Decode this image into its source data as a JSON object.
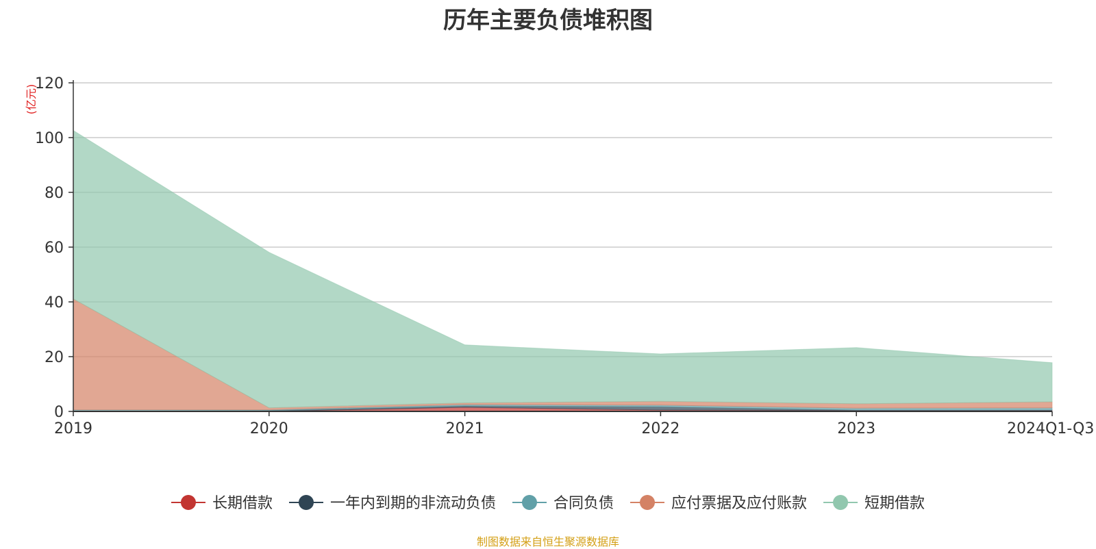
{
  "title": "历年主要负债堆积图",
  "source_note": "制图数据来自恒生聚源数据库",
  "chart_data": {
    "type": "area",
    "stacked": true,
    "title": "历年主要负债堆积图",
    "ylabel": "(亿元)",
    "xlabel": "",
    "x": [
      "2019",
      "2020",
      "2021",
      "2022",
      "2023",
      "2024Q1-Q3"
    ],
    "ylim": [
      0,
      120
    ],
    "yticks": [
      0,
      20,
      40,
      60,
      80,
      100,
      120
    ],
    "grid": true,
    "legend_position": "bottom",
    "series": [
      {
        "name": "长期借款",
        "color": "#c23531",
        "values": [
          0,
          0,
          1.5,
          0.5,
          0.3,
          0.3
        ]
      },
      {
        "name": "一年内到期的非流动负债",
        "color": "#2f4554",
        "values": [
          0,
          0.3,
          0.5,
          1.2,
          0.2,
          0.2
        ]
      },
      {
        "name": "合同负债",
        "color": "#61a0a8",
        "values": [
          0.6,
          0.3,
          0.5,
          0.6,
          0.7,
          0.8
        ]
      },
      {
        "name": "应付票据及应付账款",
        "color": "#d48265",
        "values": [
          40.5,
          0.7,
          0.6,
          1.4,
          1.6,
          2.2
        ]
      },
      {
        "name": "短期借款",
        "color": "#91c7ae",
        "values": [
          61.5,
          56.8,
          21.2,
          17.3,
          20.5,
          14.3
        ]
      }
    ]
  }
}
